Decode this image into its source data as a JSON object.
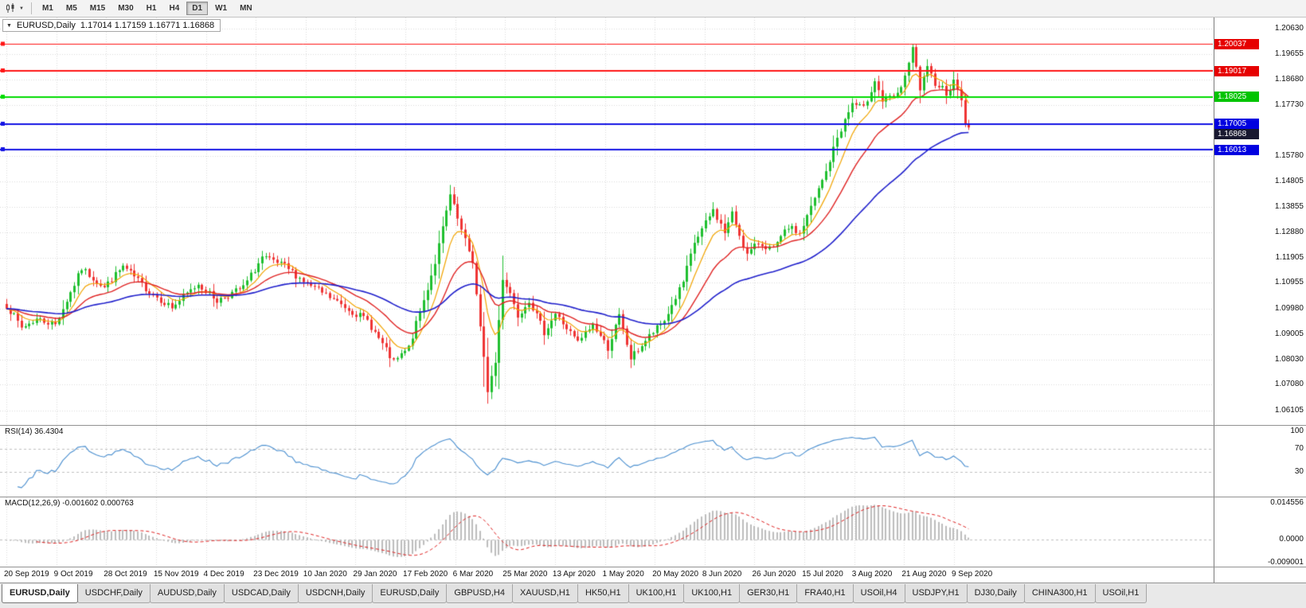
{
  "toolbar": {
    "timeframes": [
      "M1",
      "M5",
      "M15",
      "M30",
      "H1",
      "H4",
      "D1",
      "W1",
      "MN"
    ],
    "active_timeframe": "D1"
  },
  "main_chart": {
    "symbol": "EURUSD,Daily",
    "ohlc_text": "1.17014 1.17159 1.16771 1.16868",
    "y_ticks": [
      "1.20630",
      "1.19655",
      "1.18680",
      "1.17730",
      "1.15780",
      "1.14805",
      "1.13855",
      "1.12880",
      "1.11905",
      "1.10955",
      "1.09980",
      "1.09005",
      "1.08030",
      "1.07080",
      "1.06105"
    ],
    "price_tags": [
      {
        "text": "1.20037",
        "value": 1.20037,
        "bg": "#e60000"
      },
      {
        "text": "1.19017",
        "value": 1.19017,
        "bg": "#e60000"
      },
      {
        "text": "1.18025",
        "value": 1.18025,
        "bg": "#00c400"
      },
      {
        "text": "1.17005",
        "value": 1.17005,
        "bg": "#0000e0"
      },
      {
        "text": "1.16868",
        "value": 1.16868,
        "bg": "#181830"
      },
      {
        "text": "1.16013",
        "value": 1.16013,
        "bg": "#0000e0"
      }
    ],
    "hlines": [
      {
        "value": 1.20037,
        "color": "#ff1414",
        "width": 1
      },
      {
        "value": 1.19017,
        "color": "#ff1414",
        "width": 2
      },
      {
        "value": 1.18025,
        "color": "#00dc00",
        "width": 2
      },
      {
        "value": 1.17005,
        "color": "#1212e4",
        "width": 2
      },
      {
        "value": 1.16013,
        "color": "#1212e4",
        "width": 2
      }
    ],
    "scale": {
      "pmax": 1.2105,
      "pmin": 1.0555
    }
  },
  "rsi": {
    "label": "RSI(14) 36.4304",
    "value": 36.4304,
    "levels": [
      70,
      30
    ],
    "y_ticks": [
      {
        "text": "100",
        "value": 100
      },
      {
        "text": "70",
        "value": 70
      },
      {
        "text": "30",
        "value": 30
      }
    ],
    "scale": {
      "vmax": 110,
      "vmin": -12
    },
    "line_color": "#4a8fd0"
  },
  "macd": {
    "label": "MACD(12,26,9) -0.001602 0.000763",
    "macd_value": -0.001602,
    "signal_value": 0.000763,
    "y_ticks": [
      {
        "text": "0.014556",
        "value": 0.014556
      },
      {
        "text": "0.0000",
        "value": 0
      },
      {
        "text": "-0.009001",
        "value": -0.009001
      }
    ],
    "scale": {
      "vmax": 0.0166,
      "vmin": -0.0106
    },
    "histogram_color": "#bdbdbd",
    "signal_color": "#e02020"
  },
  "x_axis": {
    "labels": [
      "20 Sep 2019",
      "9 Oct 2019",
      "28 Oct 2019",
      "15 Nov 2019",
      "4 Dec 2019",
      "23 Dec 2019",
      "10 Jan 2020",
      "29 Jan 2020",
      "17 Feb 2020",
      "6 Mar 2020",
      "25 Mar 2020",
      "13 Apr 2020",
      "1 May 2020",
      "20 May 2020",
      "8 Jun 2020",
      "26 Jun 2020",
      "15 Jul 2020",
      "3 Aug 2020",
      "21 Aug 2020",
      "9 Sep 2020"
    ]
  },
  "tabs": [
    {
      "label": "EURUSD,Daily",
      "active": true
    },
    {
      "label": "USDCHF,Daily",
      "active": false
    },
    {
      "label": "AUDUSD,Daily",
      "active": false
    },
    {
      "label": "USDCAD,Daily",
      "active": false
    },
    {
      "label": "USDCNH,Daily",
      "active": false
    },
    {
      "label": "EURUSD,Daily",
      "active": false
    },
    {
      "label": "GBPUSD,H4",
      "active": false
    },
    {
      "label": "XAUUSD,H1",
      "active": false
    },
    {
      "label": "HK50,H1",
      "active": false
    },
    {
      "label": "UK100,H1",
      "active": false
    },
    {
      "label": "UK100,H1",
      "active": false
    },
    {
      "label": "GER30,H1",
      "active": false
    },
    {
      "label": "FRA40,H1",
      "active": false
    },
    {
      "label": "USOil,H4",
      "active": false
    },
    {
      "label": "USDJPY,H1",
      "active": false
    },
    {
      "label": "DJ30,Daily",
      "active": false
    },
    {
      "label": "CHINA300,H1",
      "active": false
    },
    {
      "label": "USOil,H1",
      "active": false
    }
  ],
  "chart_data": {
    "type": "candlestick",
    "symbol": "EURUSD",
    "timeframe": "Daily",
    "last_ohlc": {
      "open": 1.17014,
      "high": 1.17159,
      "low": 1.16771,
      "close": 1.16868
    },
    "n_candles": 257,
    "close_anchors": [
      [
        0,
        1.101
      ],
      [
        4,
        1.0925
      ],
      [
        8,
        1.0958
      ],
      [
        13,
        1.0938
      ],
      [
        20,
        1.115
      ],
      [
        26,
        1.1078
      ],
      [
        31,
        1.1158
      ],
      [
        38,
        1.1062
      ],
      [
        44,
        1.1002
      ],
      [
        51,
        1.1092
      ],
      [
        56,
        1.1028
      ],
      [
        63,
        1.1078
      ],
      [
        68,
        1.1192
      ],
      [
        74,
        1.1158
      ],
      [
        80,
        1.1092
      ],
      [
        88,
        1.1022
      ],
      [
        96,
        1.0952
      ],
      [
        103,
        1.0792
      ],
      [
        107,
        1.0848
      ],
      [
        111,
        1.1028
      ],
      [
        114,
        1.1175
      ],
      [
        118,
        1.1428
      ],
      [
        121,
        1.1292
      ],
      [
        124,
        1.1178
      ],
      [
        126,
        1.0922
      ],
      [
        128,
        1.0688
      ],
      [
        130,
        1.0792
      ],
      [
        132,
        1.1115
      ],
      [
        134,
        1.1058
      ],
      [
        136,
        1.0972
      ],
      [
        139,
        1.1032
      ],
      [
        143,
        1.0908
      ],
      [
        146,
        1.0978
      ],
      [
        152,
        1.0868
      ],
      [
        156,
        1.0938
      ],
      [
        160,
        1.0848
      ],
      [
        163,
        1.0968
      ],
      [
        166,
        1.0808
      ],
      [
        171,
        1.0892
      ],
      [
        175,
        1.0952
      ],
      [
        180,
        1.1098
      ],
      [
        183,
        1.1248
      ],
      [
        188,
        1.1372
      ],
      [
        191,
        1.1288
      ],
      [
        193,
        1.1358
      ],
      [
        197,
        1.1202
      ],
      [
        200,
        1.1248
      ],
      [
        204,
        1.1222
      ],
      [
        208,
        1.1308
      ],
      [
        211,
        1.1282
      ],
      [
        213,
        1.1348
      ],
      [
        218,
        1.1518
      ],
      [
        221,
        1.1648
      ],
      [
        225,
        1.1778
      ],
      [
        228,
        1.1758
      ],
      [
        231,
        1.1868
      ],
      [
        233,
        1.1788
      ],
      [
        237,
        1.1808
      ],
      [
        240,
        1.1922
      ],
      [
        241,
        1.1988
      ],
      [
        243,
        1.1832
      ],
      [
        245,
        1.1908
      ],
      [
        247,
        1.1858
      ],
      [
        249,
        1.1838
      ],
      [
        250,
        1.1818
      ],
      [
        252,
        1.1858
      ],
      [
        253,
        1.1838
      ],
      [
        254,
        1.1788
      ],
      [
        255,
        1.1702
      ],
      [
        256,
        1.16868
      ]
    ],
    "wick_overrides": [
      {
        "i": 118,
        "high": 1.1468
      },
      {
        "i": 127,
        "low": 1.07
      },
      {
        "i": 128,
        "low": 1.0636
      },
      {
        "i": 241,
        "high": 1.20037
      },
      {
        "i": 255,
        "low": 1.1688
      }
    ],
    "moving_averages": [
      {
        "period": 8,
        "color": "#f2a400",
        "width": 1.2
      },
      {
        "period": 20,
        "color": "#e02424",
        "width": 1.4
      },
      {
        "period": 55,
        "color": "#2020cc",
        "width": 1.6
      }
    ],
    "support_resistance_lines": [
      1.20037,
      1.19017,
      1.18025,
      1.17005,
      1.16013
    ],
    "rsi_value": 36.4304,
    "macd_value": -0.001602,
    "macd_signal_value": 0.000763,
    "up_color": "#1fbf2f",
    "down_color": "#ef3434"
  }
}
